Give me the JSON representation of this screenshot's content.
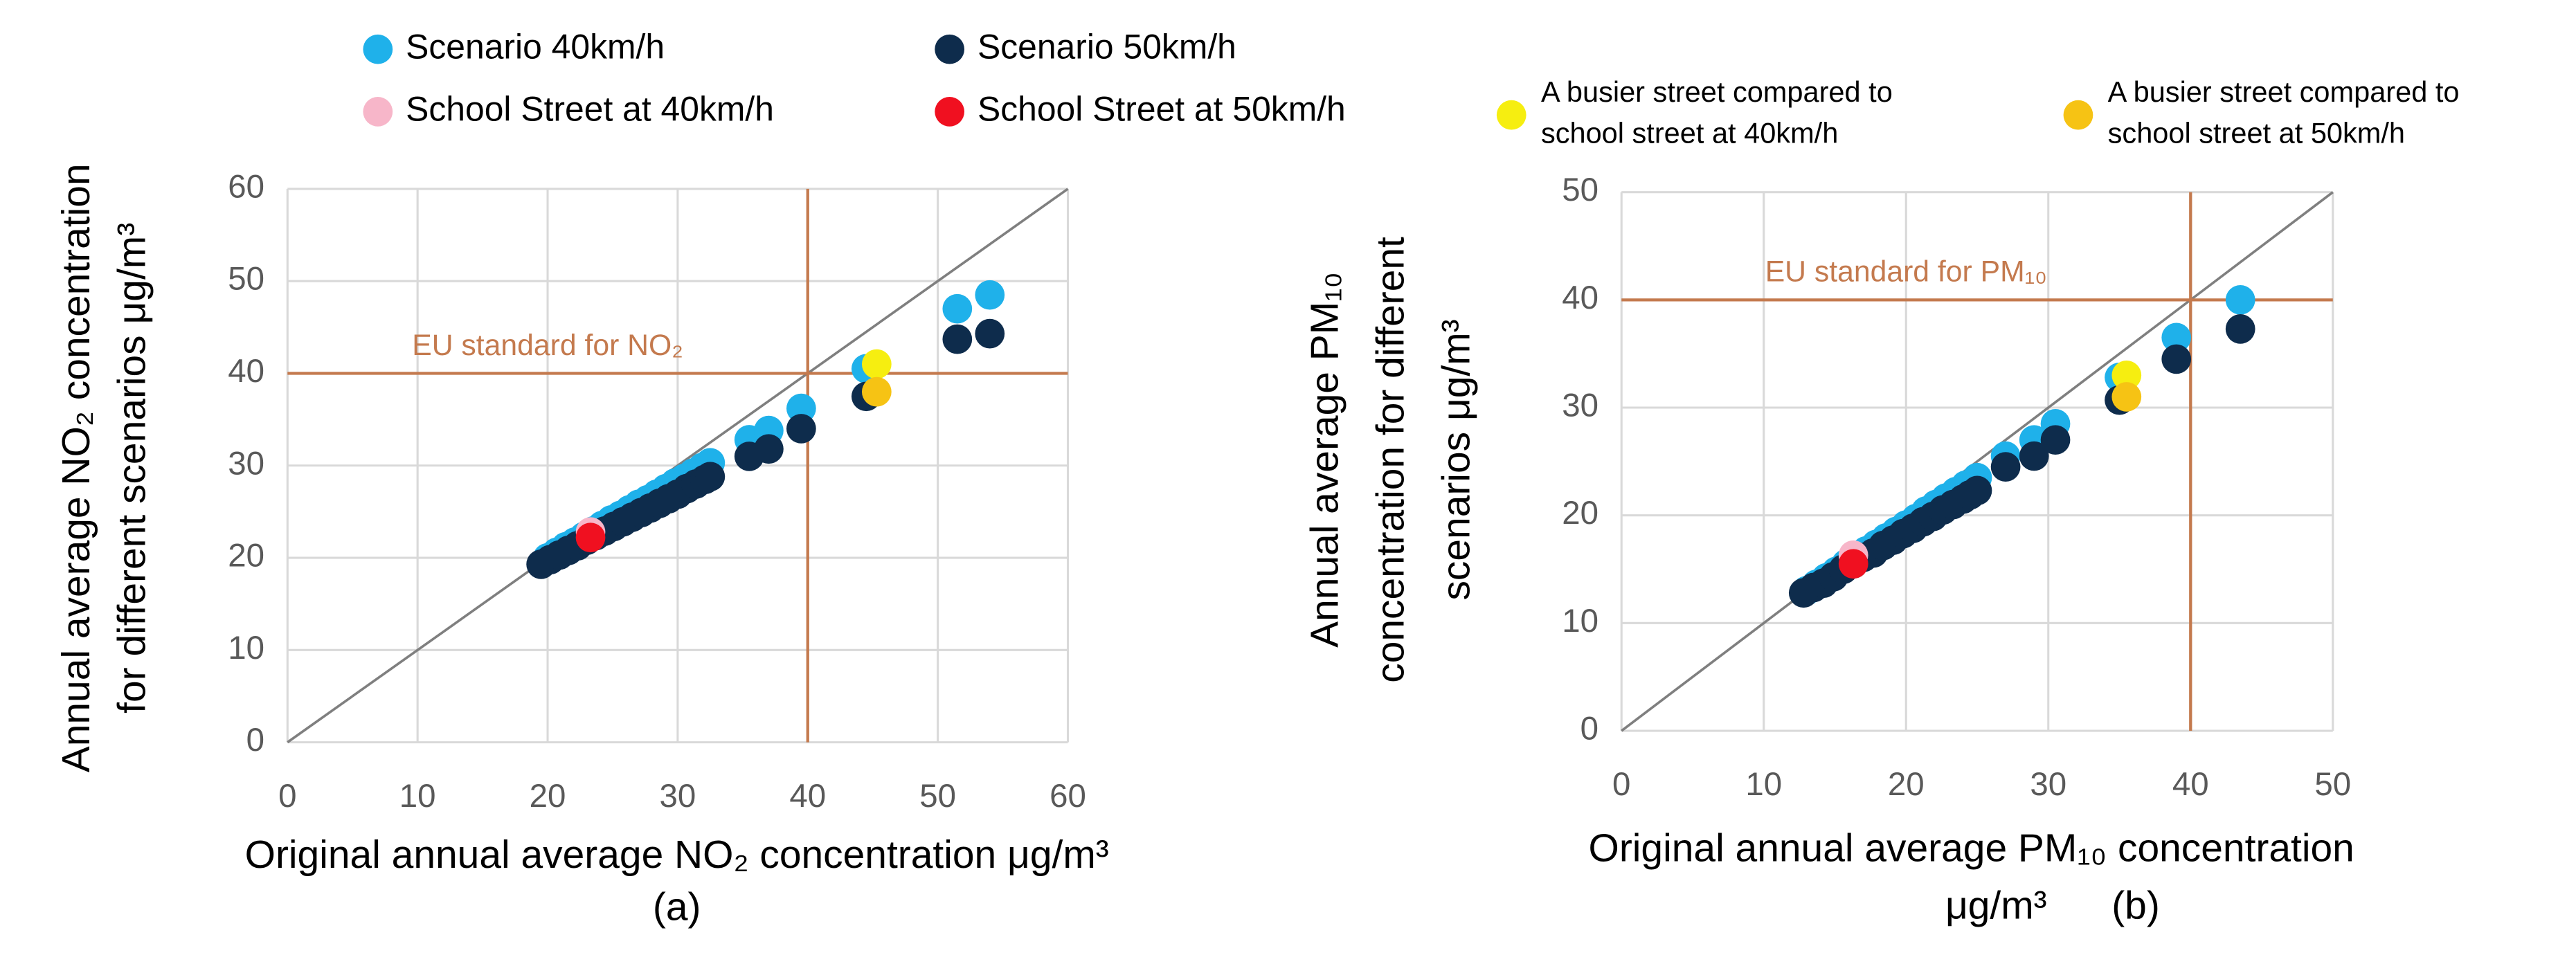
{
  "chart_data": [
    {
      "type": "scatter",
      "xlabel": "Original annual average NO₂ concentration μg/m³",
      "ylabel": [
        "Annual average NO₂ concentration",
        "for different scenarios μg/m³"
      ],
      "sublabel": "(a)",
      "xlim": [
        0,
        60
      ],
      "ylim": [
        0,
        60
      ],
      "xticks": [
        0,
        10,
        20,
        30,
        40,
        50,
        60
      ],
      "yticks": [
        0,
        10,
        20,
        30,
        40,
        50,
        60
      ],
      "grid": true,
      "eu_standard": {
        "label": "EU standard for NO₂",
        "value": 40
      },
      "series": [
        {
          "name": "Scenario 40km/h",
          "color": "#1fb1ea",
          "x": [
            20,
            20.7,
            21.4,
            22.1,
            22.8,
            23.5,
            24.2,
            24.9,
            25.6,
            26.3,
            27,
            27.7,
            28.4,
            29.1,
            29.8,
            30.5,
            31.2,
            31.9,
            32.5,
            35.5,
            37,
            39.5,
            44.5,
            51.5,
            54
          ],
          "values": [
            20,
            20.6,
            21.2,
            21.7,
            22.3,
            22.9,
            23.5,
            24.1,
            24.6,
            25.2,
            25.8,
            26.3,
            26.9,
            27.5,
            28.1,
            28.6,
            29.2,
            29.8,
            30.3,
            32.8,
            33.8,
            36.2,
            40.5,
            47,
            48.5
          ]
        },
        {
          "name": "Scenario 50km/h",
          "color": "#0e2c4c",
          "x": [
            19.5,
            20.2,
            20.9,
            21.6,
            22.3,
            23,
            23.7,
            24.4,
            25.1,
            25.8,
            26.5,
            27.2,
            27.9,
            28.6,
            29.3,
            30,
            30.7,
            31.4,
            32.1,
            32.5,
            35.5,
            37,
            39.5,
            44.5,
            51.5,
            54
          ],
          "values": [
            19.3,
            19.8,
            20.3,
            20.8,
            21.3,
            21.9,
            22.4,
            22.9,
            23.4,
            23.9,
            24.4,
            24.9,
            25.4,
            25.9,
            26.4,
            26.9,
            27.5,
            28,
            28.5,
            28.8,
            31,
            31.8,
            34,
            37.5,
            43.7,
            44.3
          ]
        },
        {
          "name": "School Street at 40km/h",
          "color": "#f7b6c9",
          "x": [
            23.3
          ],
          "values": [
            22.8
          ]
        },
        {
          "name": "School Street at 50km/h",
          "color": "#f01020",
          "x": [
            23.3
          ],
          "values": [
            22.2
          ]
        },
        {
          "name": "A busier street compared to school street at 40km/h",
          "color": "#f6ee10",
          "x": [
            45.3
          ],
          "values": [
            41
          ]
        },
        {
          "name": "A busier street compared to school street at 50km/h",
          "color": "#f6c314",
          "x": [
            45.3
          ],
          "values": [
            38
          ]
        }
      ]
    },
    {
      "type": "scatter",
      "xlabel": [
        "Original annual average PM₁₀ concentration",
        "μg/m³"
      ],
      "ylabel": [
        "Annual average PM₁₀",
        "concentration for different",
        "scenarios μg/m³"
      ],
      "sublabel": "(b)",
      "xlim": [
        0,
        50
      ],
      "ylim": [
        0,
        50
      ],
      "xticks": [
        0,
        10,
        20,
        30,
        40,
        50
      ],
      "yticks": [
        0,
        10,
        20,
        30,
        40,
        50
      ],
      "grid": true,
      "eu_standard": {
        "label": "EU standard for PM₁₀",
        "value": 40
      },
      "series": [
        {
          "name": "Scenario 40km/h",
          "color": "#1fb1ea",
          "x": [
            13,
            13.7,
            14.4,
            15.1,
            15.8,
            16.5,
            17.2,
            17.9,
            18.6,
            19.3,
            20,
            20.7,
            21.4,
            22.1,
            22.8,
            23.5,
            24.2,
            25,
            27,
            29,
            30.5,
            35,
            39,
            43.5
          ],
          "values": [
            13,
            13.6,
            14.2,
            14.8,
            15.5,
            16.1,
            16.7,
            17.3,
            17.9,
            18.5,
            19.1,
            19.7,
            20.4,
            21,
            21.6,
            22.2,
            22.8,
            23.5,
            25.5,
            27,
            28.5,
            32.8,
            36.5,
            40
          ]
        },
        {
          "name": "Scenario 50km/h",
          "color": "#0e2c4c",
          "x": [
            12.8,
            13.5,
            14.2,
            14.9,
            15.6,
            16.3,
            17,
            17.7,
            18.4,
            19.1,
            19.8,
            20.5,
            21.2,
            21.9,
            22.6,
            23.3,
            24,
            24.5,
            25,
            27,
            29,
            30.5,
            35,
            39,
            43.5
          ],
          "values": [
            12.8,
            13.3,
            13.7,
            14.3,
            15,
            15.5,
            16.1,
            16.5,
            17.2,
            17.7,
            18.3,
            18.8,
            19.4,
            19.9,
            20.5,
            21,
            21.5,
            21.9,
            22.3,
            24.5,
            25.5,
            27,
            30.7,
            34.5,
            37.3
          ]
        },
        {
          "name": "School Street at 40km/h",
          "color": "#f7b6c9",
          "x": [
            16.3
          ],
          "values": [
            16.3
          ]
        },
        {
          "name": "School Street at 50km/h",
          "color": "#f01020",
          "x": [
            16.3
          ],
          "values": [
            15.5
          ]
        },
        {
          "name": "A busier street compared to school street at 40km/h",
          "color": "#f6ee10",
          "x": [
            35.5
          ],
          "values": [
            33
          ]
        },
        {
          "name": "A busier street compared to school street at 50km/h",
          "color": "#f6c314",
          "x": [
            35.5
          ],
          "values": [
            31
          ]
        }
      ]
    }
  ]
}
